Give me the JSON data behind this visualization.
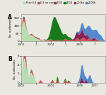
{
  "colors": {
    "prev04": "#b8ddb0",
    "no_var": "#cc5555",
    "s2002": "#993333",
    "s2004": "#1a7a1a",
    "s2006a": "#882255",
    "s2006b": "#5588cc"
  },
  "legend_labels": [
    "Prev 0.4",
    "0.4 no var",
    "2002",
    "2004",
    "2006a",
    "2006b"
  ],
  "fig_bg": "#e8e8e0",
  "panel_bg": "#e8e8e0",
  "ylim_A": 175,
  "ylim_B": 6,
  "xlim": [
    2002.0,
    2007.7
  ],
  "xticks": [
    2002,
    2003,
    2004,
    2005,
    2006,
    2007
  ],
  "xticklabels": [
    "2002",
    "1",
    "2004",
    "1",
    "2006",
    "1 2007"
  ]
}
